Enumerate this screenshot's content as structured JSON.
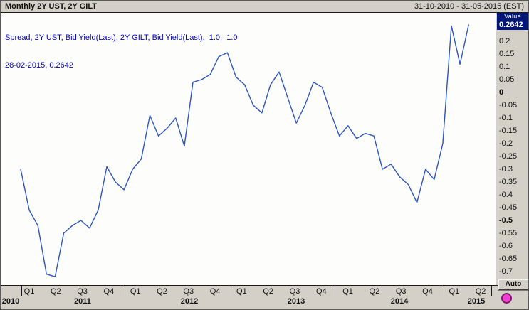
{
  "titlebar": {
    "title": "Monthly 2Y UST, 2Y GILT",
    "range": "31-10-2010 - 31-05-2015 (EST)"
  },
  "legend": {
    "line1": "Spread, 2Y UST, Bid Yield(Last), 2Y GILT, Bid Yield(Last),  1.0,  1.0",
    "line2": "28-02-2015, 0.2642"
  },
  "value_axis": {
    "title": "Value",
    "current_value": "0.2642",
    "ticks": [
      "0.2",
      "0.15",
      "0.1",
      "0.05",
      "0",
      "-0.05",
      "-0.1",
      "-0.15",
      "-0.2",
      "-0.25",
      "-0.3",
      "-0.35",
      "-0.4",
      "-0.45",
      "-0.5",
      "-0.55",
      "-0.6",
      "-0.65",
      "-0.7"
    ],
    "bold_ticks": [
      "0",
      "-0.5"
    ]
  },
  "time_axis": {
    "quarters": [
      "Q1",
      "Q2",
      "Q3",
      "Q4",
      "Q1",
      "Q2",
      "Q3",
      "Q4",
      "Q1",
      "Q2",
      "Q3",
      "Q4",
      "Q1",
      "Q2",
      "Q3",
      "Q4",
      "Q1",
      "Q2"
    ],
    "years": [
      "2010",
      "2011",
      "2012",
      "2013",
      "2014",
      "2015"
    ]
  },
  "controls": {
    "auto_button": "Auto"
  },
  "colors": {
    "line": "#2e55c8",
    "legend_text": "#0000cc",
    "value_badge_bg": "#001778",
    "accent_dot": "#f23fd3",
    "chrome": "#d4d0c8"
  },
  "chart_data": {
    "type": "line",
    "title": "Spread of 2Y UST Bid Yield vs 2Y GILT Bid Yield, Monthly",
    "ylabel": "Value",
    "ylim": [
      -0.75,
      0.3
    ],
    "x_range": [
      "31-10-2010",
      "31-05-2015"
    ],
    "grid": false,
    "legend_position": "top-left",
    "last_point": {
      "date": "28-02-2015",
      "value": 0.2642
    },
    "x": [
      "2010-10",
      "2010-11",
      "2010-12",
      "2011-01",
      "2011-02",
      "2011-03",
      "2011-04",
      "2011-05",
      "2011-06",
      "2011-07",
      "2011-08",
      "2011-09",
      "2011-10",
      "2011-11",
      "2011-12",
      "2012-01",
      "2012-02",
      "2012-03",
      "2012-04",
      "2012-05",
      "2012-06",
      "2012-07",
      "2012-08",
      "2012-09",
      "2012-10",
      "2012-11",
      "2012-12",
      "2013-01",
      "2013-02",
      "2013-03",
      "2013-04",
      "2013-05",
      "2013-06",
      "2013-07",
      "2013-08",
      "2013-09",
      "2013-10",
      "2013-11",
      "2013-12",
      "2014-01",
      "2014-02",
      "2014-03",
      "2014-04",
      "2014-05",
      "2014-06",
      "2014-07",
      "2014-08",
      "2014-09",
      "2014-10",
      "2014-11",
      "2014-12",
      "2015-01",
      "2015-02"
    ],
    "series": [
      {
        "name": "Spread (2Y UST - 2Y GILT)",
        "values": [
          -0.3,
          -0.46,
          -0.52,
          -0.71,
          -0.72,
          -0.55,
          -0.52,
          -0.5,
          -0.53,
          -0.46,
          -0.29,
          -0.35,
          -0.38,
          -0.3,
          -0.26,
          -0.09,
          -0.17,
          -0.14,
          -0.1,
          -0.21,
          0.04,
          0.05,
          0.07,
          0.14,
          0.155,
          0.06,
          0.03,
          -0.05,
          -0.08,
          0.03,
          0.08,
          -0.02,
          -0.12,
          -0.05,
          0.04,
          0.02,
          -0.08,
          -0.17,
          -0.13,
          -0.18,
          -0.16,
          -0.17,
          -0.3,
          -0.28,
          -0.33,
          -0.36,
          -0.43,
          -0.3,
          -0.34,
          -0.2,
          0.26,
          0.11,
          0.2642
        ]
      }
    ]
  }
}
